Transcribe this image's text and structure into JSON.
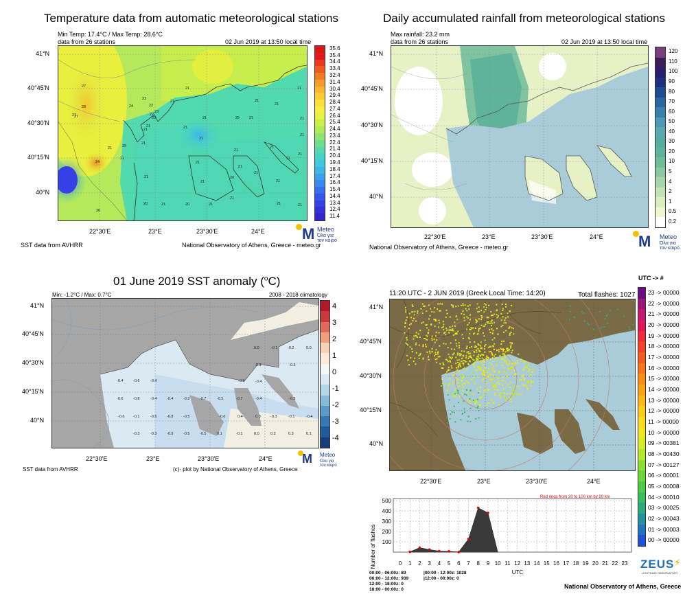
{
  "panel_temp": {
    "title": "Temperature data from automatic meteorological stations",
    "minmax": "Min Temp: 17.4°C / Max Temp: 28.6°C",
    "stations": "data from 26 stations",
    "datetime": "02 Jun 2019 at 13:50 local time",
    "lat_labels": [
      "41°N",
      "40°45'N",
      "40°30'N",
      "40°15'N",
      "40°N"
    ],
    "lon_labels": [
      "22°30'E",
      "23°E",
      "23°30'E",
      "24°E"
    ],
    "scale_labels": [
      "35.6",
      "35.4",
      "34.4",
      "33.4",
      "32.4",
      "31.4",
      "30.4",
      "29.4",
      "28.4",
      "27.4",
      "26.4",
      "25.4",
      "24.4",
      "23.4",
      "22.4",
      "21.4",
      "20.4",
      "19.4",
      "18.4",
      "17.4",
      "16.4",
      "15.4",
      "14.4",
      "13.4",
      "12.4",
      "11.4"
    ],
    "scale_colors": [
      "#d7191c",
      "#e31a1c",
      "#ea3a1f",
      "#f05a22",
      "#f57a25",
      "#f99a28",
      "#fbb52c",
      "#fccc31",
      "#fde035",
      "#f8ef3c",
      "#e6f23e",
      "#cdf045",
      "#b1ea55",
      "#8ee46d",
      "#6fdd8c",
      "#55d8ab",
      "#45d3c7",
      "#3fc9dd",
      "#3cb8e8",
      "#3aa2ee",
      "#3989f0",
      "#386ff0",
      "#3755ee",
      "#3640e8",
      "#3530dd",
      "#3424cc"
    ],
    "values_shown": [
      "27",
      "27",
      "28",
      "27",
      "24",
      "23",
      "22",
      "23",
      "20",
      "22",
      "21",
      "21",
      "21",
      "21",
      "21",
      "21",
      "21",
      "25",
      "21",
      "21",
      "21",
      "21",
      "21",
      "21",
      "21",
      "21",
      "29",
      "21",
      "21",
      "21",
      "24",
      "21",
      "21",
      "21",
      "21",
      "21",
      "20",
      "21",
      "21",
      "21",
      "20",
      "21",
      "20",
      "21",
      "21",
      "21",
      "21",
      "26"
    ],
    "footer_left": "SST data from AVHRR",
    "footer_right": "National Observatory of Athens, Greece - meteo.gr"
  },
  "panel_rain": {
    "title": "Daily accumulated rainfall from meteorological stations",
    "maxinfo": "Max rainfall: 23.2 mm",
    "stations": "data from 26 stations",
    "datetime": "02 Jun 2019 at 13:50 local time",
    "lat_labels": [
      "41°N",
      "40°45'N",
      "40°30'N",
      "40°15'N",
      "40°N"
    ],
    "lon_labels": [
      "22°30'E",
      "23°E",
      "23°30'E",
      "24°E"
    ],
    "scale_labels": [
      "120",
      "110",
      "100",
      "90",
      "80",
      "70",
      "60",
      "50",
      "40",
      "30",
      "20",
      "10",
      "5",
      "4",
      "2",
      "1",
      "0.5",
      "0.2"
    ],
    "scale_colors": [
      "#7a3f7f",
      "#3b1d59",
      "#2d1d6e",
      "#1d2e83",
      "#204b93",
      "#2a66a0",
      "#3a80ab",
      "#4d98b5",
      "#5aa9ae",
      "#53ada0",
      "#5fb39a",
      "#6ebd98",
      "#8ac9a0",
      "#a6d5a8",
      "#c3e1b3",
      "#dceec0",
      "#eef6d4",
      "#ffffff"
    ],
    "footer_left": "National Observatory of Athens, Greece - meteo.gr"
  },
  "panel_sst": {
    "title": "01 June 2019 SST anomaly (",
    "title_unit": "C)",
    "title_deg": "o",
    "minmax": "Min: -1.2°C / Max: 0.7°C",
    "climatology": "2008 - 2018 climatology",
    "lat_labels": [
      "41°N",
      "40°45'N",
      "40°30'N",
      "40°15'N",
      "40°N"
    ],
    "lon_labels": [
      "22°30'E",
      "23°E",
      "23°30'E",
      "24°E"
    ],
    "scale_labels": [
      "4",
      "3",
      "2",
      "1",
      "0",
      "-1",
      "-2",
      "-3",
      "-4"
    ],
    "scale_colors": [
      "#b2182b",
      "#c93a3f",
      "#de6b5a",
      "#ef9f7c",
      "#f7d2b5",
      "#fbebd8",
      "#f6f6f6",
      "#dbeaf2",
      "#b4d6e8",
      "#86bcd9",
      "#5a9bc7",
      "#3878b3",
      "#215a9a",
      "#143d7a"
    ],
    "values_shown": [
      "0.0",
      "-0.1",
      "-0.2",
      "0.0",
      "-0.3",
      "-0.3",
      "-0.4",
      "-0.6",
      "-0.4",
      "-0.3",
      "-0.4",
      "-0.6",
      "-0.8",
      "-0.4",
      "-0.4",
      "-0.2",
      "-0.7",
      "-0.5",
      "-0.7",
      "-0.4",
      "-0.3",
      "-0.6",
      "-0.1",
      "-0.6",
      "-0.8",
      "-0.5",
      "-0.6",
      "-0.3",
      "-0.1",
      "-0.4",
      "-0.3",
      "-0.3",
      "-0.9",
      "-0.5",
      "-0.5",
      "0.1",
      "-0.1",
      "0.0",
      "0.2",
      "0.3",
      "0.1",
      "0.4",
      "0.0"
    ],
    "footer_left": "SST data from AVHRR",
    "footer_center": "(c)- plot by National Observatory of Athens, Greece"
  },
  "panel_lightning": {
    "header": "11:20 UTC -  2  JUN 2019 (Greek Local Time: 14:20)",
    "total": "Total flashes: 1027",
    "legend_title": "UTC  ->  #",
    "lat_labels": [
      "41°N",
      "40°45'N",
      "40°30'N",
      "40°15'N",
      "40°N"
    ],
    "lon_labels": [
      "22°30'E",
      "23°E",
      "23°30'E",
      "24°E"
    ],
    "legend_rows": [
      "23 -> 00000",
      "22 -> 00000",
      "21 -> 00000",
      "20 -> 00000",
      "19 -> 00000",
      "18 -> 00000",
      "17 -> 00000",
      "16 -> 00000",
      "15 -> 00000",
      "14 -> 00000",
      "13 -> 00000",
      "12 -> 00000",
      "11 -> 00000",
      "10 -> 00000",
      "09 -> 00381",
      "08 -> 00430",
      "07 -> 00127",
      "06 -> 00001",
      "05 -> 00008",
      "04 -> 00010",
      "03 -> 00025",
      "02 -> 00043",
      "01 -> 00003",
      "00 -> 00000"
    ],
    "legend_colors": [
      "#6a0d83",
      "#9b1677",
      "#c0196e",
      "#e0185b",
      "#ee2a3d",
      "#f2432a",
      "#f45d22",
      "#f6751d",
      "#f88d18",
      "#f9a317",
      "#fbb818",
      "#fccc1a",
      "#fadb1d",
      "#eee821",
      "#d6ec26",
      "#b4e82c",
      "#8fdf32",
      "#6dd63a",
      "#4fcb47",
      "#39bd5e",
      "#2ea97e",
      "#2590a0",
      "#2173bd",
      "#1f52d6"
    ],
    "rings_note": "Red rings from 20 to 100 km by 20 km",
    "ylabel": "Number of flashes",
    "xlabel": "UTC",
    "brand": "ZEUS",
    "brand_sub": "LIGHTNING OBSERVATORY",
    "summary_left": [
      "00:00 - 06:00z: 89",
      "06:00 - 12:00z: 939",
      "12:00 - 18:00z: 0",
      "18:00 - 00:00z: 0"
    ],
    "summary_right": [
      "|00:00 - 12:00z: 1028",
      "|12:00 - 00:00z: 0"
    ],
    "footer": "National Observatory of Athens, Greece"
  },
  "logo": {
    "name": "Meteo",
    "tagline_1": "Όλα για",
    "tagline_2": "τον καιρό"
  },
  "chart_data": {
    "type": "area",
    "title": "",
    "xlabel": "UTC",
    "ylabel": "Number of flashes",
    "x": [
      0,
      1,
      2,
      3,
      4,
      5,
      6,
      7,
      8,
      9,
      10,
      11,
      12,
      13,
      14,
      15,
      16,
      17,
      18,
      19,
      20,
      21,
      22,
      23
    ],
    "series": [
      {
        "values": [
          0,
          3,
          43,
          25,
          10,
          8,
          1,
          127,
          430,
          381,
          0,
          0,
          0,
          0,
          0,
          0,
          0,
          0,
          0,
          0,
          0,
          0,
          0,
          0
        ]
      }
    ],
    "xlim": [
      0,
      23
    ],
    "ylim": [
      0,
      500
    ],
    "yticks": [
      100,
      200,
      300,
      400,
      500
    ],
    "grid": true
  }
}
